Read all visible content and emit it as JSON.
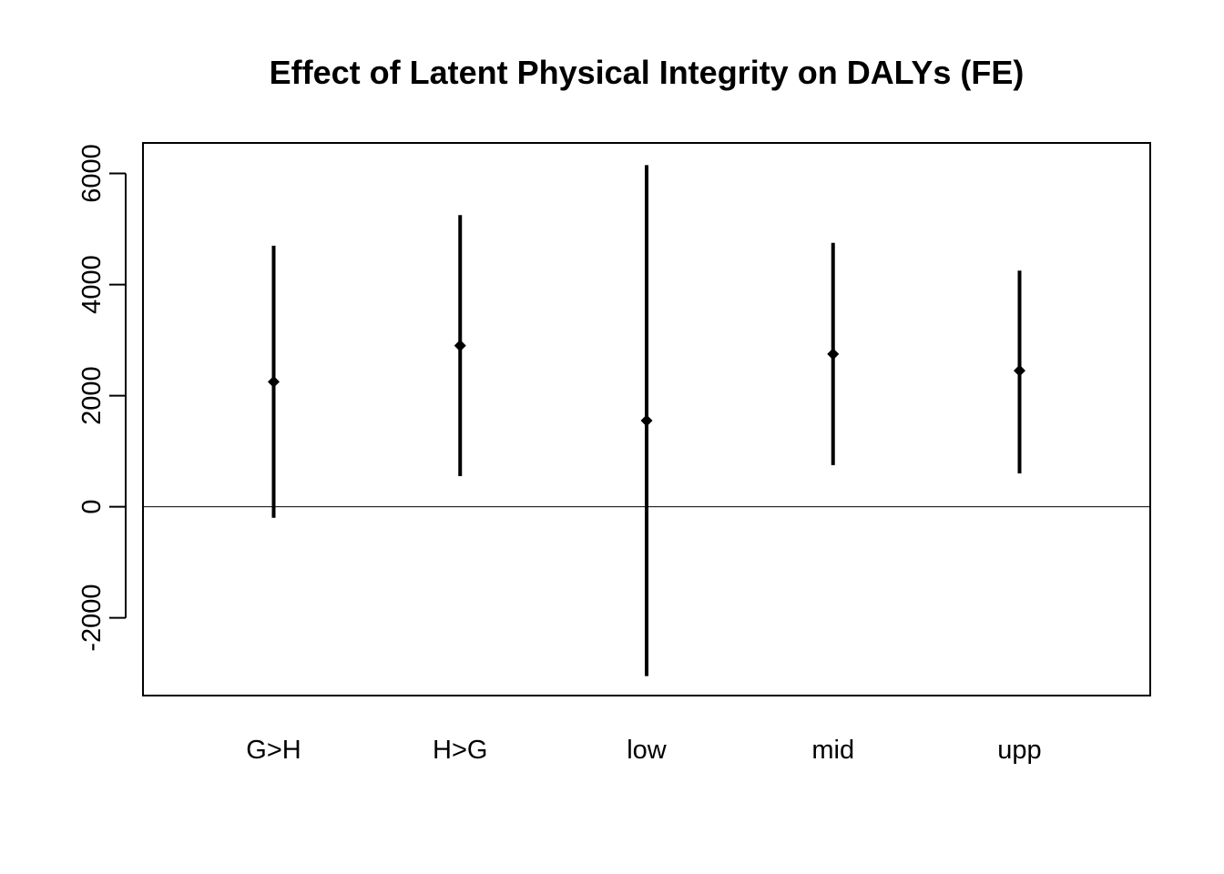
{
  "chart_data": {
    "type": "errorbar",
    "title": "Effect of Latent Physical Integrity on DALYs (FE)",
    "xlabel": "",
    "ylabel": "",
    "categories": [
      "G>H",
      "H>G",
      "low",
      "mid",
      "upp"
    ],
    "estimates": [
      2250,
      2900,
      1550,
      2750,
      2450
    ],
    "lower": [
      -200,
      550,
      -3050,
      750,
      600
    ],
    "upper": [
      4700,
      5250,
      6150,
      4750,
      4250
    ],
    "yticks": [
      -2000,
      0,
      2000,
      4000,
      6000
    ],
    "ylim": [
      -3400,
      6550
    ],
    "reference_line": 0,
    "grid": false,
    "legend": "none"
  }
}
